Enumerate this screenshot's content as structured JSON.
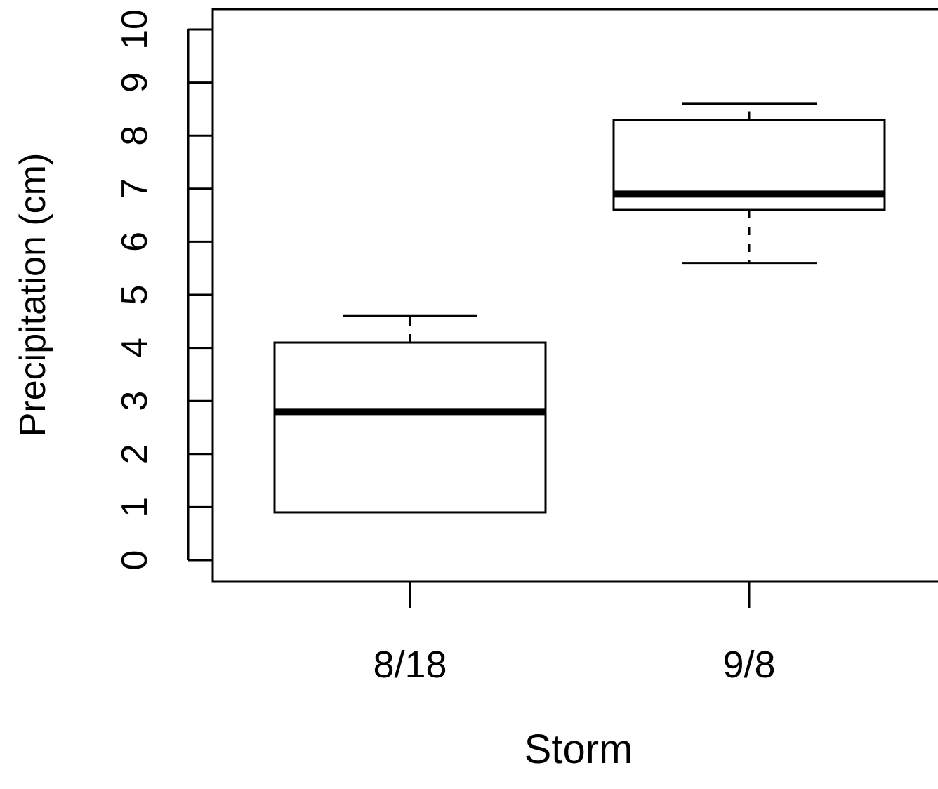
{
  "chart_data": {
    "type": "boxplot",
    "title": "",
    "xlabel": "Storm",
    "ylabel": "Precipitation (cm)",
    "ylim": [
      0,
      10
    ],
    "yticks": [
      "0",
      "1",
      "2",
      "3",
      "4",
      "5",
      "6",
      "7",
      "8",
      "9",
      "10"
    ],
    "categories": [
      "8/18",
      "9/8"
    ],
    "boxes": [
      {
        "category": "8/18",
        "whisker_low": 0.9,
        "q1": 0.9,
        "median": 2.8,
        "q3": 4.1,
        "whisker_high": 4.6
      },
      {
        "category": "9/8",
        "whisker_low": 5.6,
        "q1": 6.6,
        "median": 6.9,
        "q3": 8.3,
        "whisker_high": 8.6
      }
    ],
    "grid": false,
    "legend": "none",
    "colors": {
      "stroke": "#000000",
      "fill": "#ffffff",
      "background": "#ffffff"
    }
  }
}
